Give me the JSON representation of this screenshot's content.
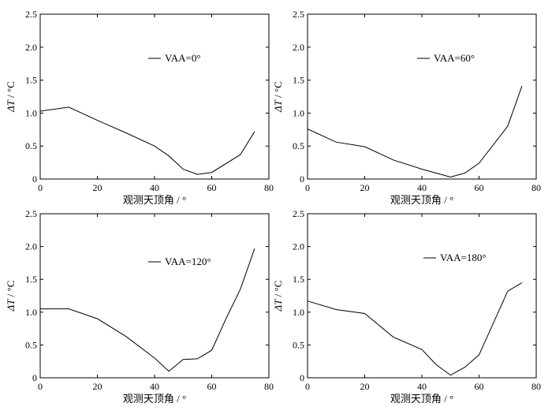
{
  "chart_data": [
    {
      "type": "line",
      "xlabel": "观测天顶角 / °",
      "ylabel_var": "ΔT",
      "ylabel_unit": " / °C",
      "xlim": [
        0,
        80
      ],
      "ylim": [
        0,
        2.5
      ],
      "xticks": [
        "0",
        "20",
        "40",
        "60",
        "80"
      ],
      "yticks": [
        "0",
        "0.5",
        "1.0",
        "1.5",
        "2.0",
        "2.5"
      ],
      "legend_position": "upper-center",
      "series": [
        {
          "name": "VAA=0°",
          "x": [
            0,
            10,
            20,
            30,
            40,
            45,
            50,
            55,
            60,
            70,
            75
          ],
          "y": [
            1.03,
            1.09,
            0.89,
            0.7,
            0.5,
            0.35,
            0.15,
            0.07,
            0.1,
            0.37,
            0.72
          ]
        }
      ]
    },
    {
      "type": "line",
      "xlabel": "观测天顶角 / °",
      "ylabel_var": "ΔT",
      "ylabel_unit": " / °C",
      "xlim": [
        0,
        80
      ],
      "ylim": [
        0,
        2.5
      ],
      "xticks": [
        "0",
        "20",
        "40",
        "60",
        "80"
      ],
      "yticks": [
        "0",
        "0.5",
        "1.0",
        "1.5",
        "2.0",
        "2.5"
      ],
      "legend_position": "upper-center",
      "series": [
        {
          "name": "VAA=60°",
          "x": [
            0,
            10,
            20,
            30,
            40,
            50,
            55,
            60,
            70,
            75
          ],
          "y": [
            0.76,
            0.56,
            0.49,
            0.29,
            0.15,
            0.03,
            0.09,
            0.24,
            0.8,
            1.41
          ]
        }
      ]
    },
    {
      "type": "line",
      "xlabel": "观测天顶角 / °",
      "ylabel_var": "ΔT",
      "ylabel_unit": " / °C",
      "xlim": [
        0,
        80
      ],
      "ylim": [
        0,
        2.5
      ],
      "xticks": [
        "0",
        "20",
        "40",
        "60",
        "80"
      ],
      "yticks": [
        "0",
        "0.5",
        "1.0",
        "1.5",
        "2.0",
        "2.5"
      ],
      "legend_position": "upper-center",
      "series": [
        {
          "name": "VAA=120°",
          "x": [
            0,
            10,
            20,
            30,
            40,
            45,
            50,
            55,
            60,
            65,
            70,
            75
          ],
          "y": [
            1.05,
            1.05,
            0.9,
            0.63,
            0.3,
            0.1,
            0.28,
            0.29,
            0.42,
            0.9,
            1.35,
            1.97
          ]
        }
      ]
    },
    {
      "type": "line",
      "xlabel": "观测天顶角 / °",
      "ylabel_var": "ΔT",
      "ylabel_unit": " / °C",
      "xlim": [
        0,
        80
      ],
      "ylim": [
        0,
        2.5
      ],
      "xticks": [
        "0",
        "20",
        "40",
        "60",
        "80"
      ],
      "yticks": [
        "0",
        "0.5",
        "1.0",
        "1.5",
        "2.0",
        "2.5"
      ],
      "legend_position": "upper-center",
      "series": [
        {
          "name": "VAA=180°",
          "x": [
            0,
            10,
            20,
            30,
            40,
            45,
            50,
            55,
            60,
            70,
            75
          ],
          "y": [
            1.17,
            1.04,
            0.98,
            0.62,
            0.43,
            0.2,
            0.04,
            0.16,
            0.35,
            1.32,
            1.45
          ]
        }
      ]
    }
  ]
}
